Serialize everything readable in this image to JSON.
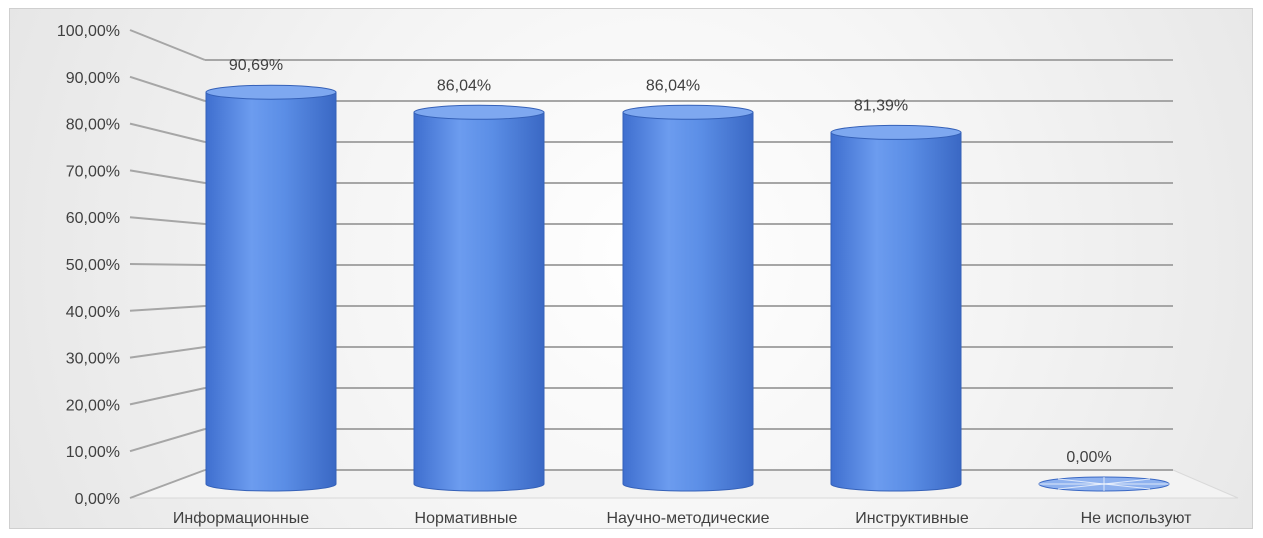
{
  "chart_data": {
    "type": "bar",
    "style": "3d-cylinder",
    "categories": [
      "Информационные",
      "Нормативные",
      "Научно-методические",
      "Инструктивные",
      "Не используют"
    ],
    "values": [
      90.69,
      86.04,
      86.04,
      81.39,
      0.0
    ],
    "data_labels": [
      "90,69%",
      "86,04%",
      "86,04%",
      "81,39%",
      "0,00%"
    ],
    "y_ticks": [
      "0,00%",
      "10,00%",
      "20,00%",
      "30,00%",
      "40,00%",
      "50,00%",
      "60,00%",
      "70,00%",
      "80,00%",
      "90,00%",
      "100,00%"
    ],
    "ylim": [
      0,
      100
    ],
    "grid": true,
    "legend": "none",
    "colors": {
      "bar": "#5b8ee6",
      "bar_dark": "#3f6fcf",
      "bar_light": "#7aa6f0",
      "grid": "#a6a6a6"
    }
  }
}
